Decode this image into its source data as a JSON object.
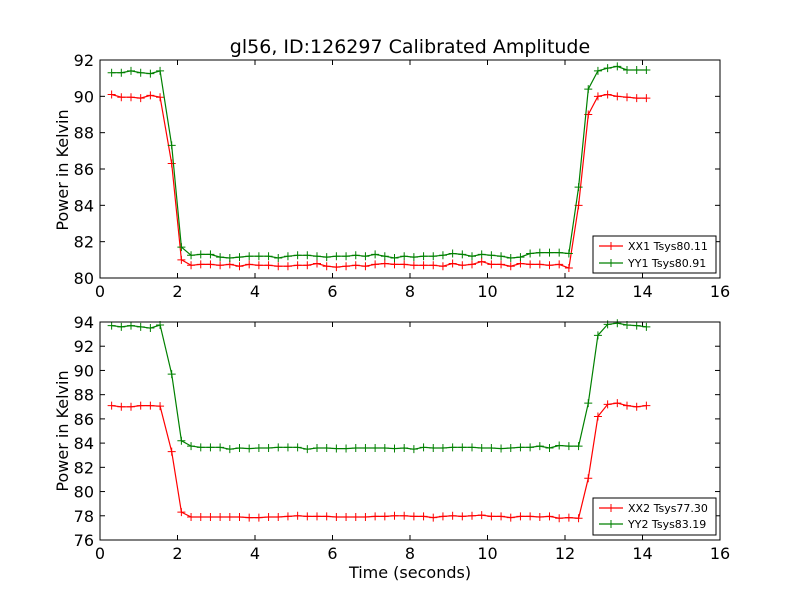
{
  "chart_data": [
    {
      "type": "line",
      "title": "gl56, ID:126297 Calibrated Amplitude",
      "xlabel": "",
      "ylabel": "Power in Kelvin",
      "xlim": [
        0,
        16
      ],
      "ylim": [
        80,
        92
      ],
      "xticks": [
        "0",
        "2",
        "4",
        "6",
        "8",
        "10",
        "12",
        "14",
        "16"
      ],
      "yticks": [
        "80",
        "82",
        "84",
        "86",
        "88",
        "90",
        "92"
      ],
      "legend_position": "lower-right",
      "x": [
        0.3,
        0.55,
        0.8,
        1.05,
        1.3,
        1.55,
        1.85,
        2.1,
        2.35,
        2.6,
        2.85,
        3.1,
        3.35,
        3.6,
        3.85,
        4.1,
        4.35,
        4.6,
        4.85,
        5.1,
        5.35,
        5.6,
        5.85,
        6.1,
        6.35,
        6.6,
        6.85,
        7.1,
        7.35,
        7.6,
        7.85,
        8.1,
        8.35,
        8.6,
        8.85,
        9.1,
        9.35,
        9.6,
        9.85,
        10.1,
        10.35,
        10.6,
        10.85,
        11.1,
        11.35,
        11.6,
        11.85,
        12.1,
        12.35,
        12.6,
        12.85,
        13.1,
        13.35,
        13.6,
        13.85,
        14.1
      ],
      "series": [
        {
          "name": "XX1 Tsys80.11",
          "color": "#ff0000",
          "values": [
            90.1,
            89.95,
            89.95,
            89.9,
            90.05,
            89.95,
            86.3,
            81.0,
            80.7,
            80.75,
            80.75,
            80.7,
            80.75,
            80.65,
            80.75,
            80.7,
            80.7,
            80.65,
            80.65,
            80.7,
            80.7,
            80.8,
            80.65,
            80.6,
            80.65,
            80.7,
            80.65,
            80.75,
            80.8,
            80.75,
            80.75,
            80.7,
            80.7,
            80.7,
            80.65,
            80.8,
            80.7,
            80.75,
            80.9,
            80.75,
            80.75,
            80.65,
            80.8,
            80.75,
            80.75,
            80.7,
            80.75,
            80.55,
            84.0,
            89.0,
            90.0,
            90.1,
            90.0,
            89.95,
            89.9,
            89.9
          ]
        },
        {
          "name": "YY1 Tsys80.91",
          "color": "#008000",
          "values": [
            91.3,
            91.3,
            91.4,
            91.3,
            91.25,
            91.4,
            87.3,
            81.7,
            81.25,
            81.3,
            81.3,
            81.15,
            81.1,
            81.15,
            81.2,
            81.2,
            81.2,
            81.1,
            81.2,
            81.25,
            81.25,
            81.2,
            81.15,
            81.2,
            81.2,
            81.25,
            81.2,
            81.3,
            81.2,
            81.1,
            81.2,
            81.15,
            81.2,
            81.2,
            81.25,
            81.35,
            81.3,
            81.2,
            81.3,
            81.25,
            81.2,
            81.1,
            81.15,
            81.35,
            81.4,
            81.4,
            81.4,
            81.35,
            85.0,
            90.4,
            91.4,
            91.55,
            91.65,
            91.45,
            91.45,
            91.45
          ]
        }
      ]
    },
    {
      "type": "line",
      "title": "",
      "xlabel": "Time (seconds)",
      "ylabel": "Power in Kelvin",
      "xlim": [
        0,
        16
      ],
      "ylim": [
        76,
        94
      ],
      "xticks": [
        "0",
        "2",
        "4",
        "6",
        "8",
        "10",
        "12",
        "14",
        "16"
      ],
      "yticks": [
        "76",
        "78",
        "80",
        "82",
        "84",
        "86",
        "88",
        "90",
        "92",
        "94"
      ],
      "legend_position": "lower-right",
      "x": [
        0.3,
        0.55,
        0.8,
        1.05,
        1.3,
        1.55,
        1.85,
        2.1,
        2.35,
        2.6,
        2.85,
        3.1,
        3.35,
        3.6,
        3.85,
        4.1,
        4.35,
        4.6,
        4.85,
        5.1,
        5.35,
        5.6,
        5.85,
        6.1,
        6.35,
        6.6,
        6.85,
        7.1,
        7.35,
        7.6,
        7.85,
        8.1,
        8.35,
        8.6,
        8.85,
        9.1,
        9.35,
        9.6,
        9.85,
        10.1,
        10.35,
        10.6,
        10.85,
        11.1,
        11.35,
        11.6,
        11.85,
        12.1,
        12.35,
        12.6,
        12.85,
        13.1,
        13.35,
        13.6,
        13.85,
        14.1
      ],
      "series": [
        {
          "name": "XX2 Tsys77.30",
          "color": "#ff0000",
          "values": [
            87.1,
            87.0,
            87.0,
            87.1,
            87.1,
            87.05,
            83.3,
            78.3,
            77.9,
            77.9,
            77.9,
            77.9,
            77.9,
            77.9,
            77.85,
            77.85,
            77.9,
            77.9,
            77.95,
            78.0,
            77.95,
            77.95,
            77.95,
            77.9,
            77.9,
            77.9,
            77.9,
            77.95,
            77.95,
            78.0,
            78.0,
            77.95,
            77.95,
            77.85,
            77.95,
            78.0,
            77.95,
            78.0,
            78.05,
            77.95,
            77.95,
            77.85,
            77.95,
            77.95,
            77.9,
            77.95,
            77.8,
            77.85,
            77.8,
            81.1,
            86.2,
            87.2,
            87.3,
            87.1,
            87.0,
            87.1
          ]
        },
        {
          "name": "YY2 Tsys83.19",
          "color": "#008000",
          "values": [
            93.7,
            93.6,
            93.7,
            93.6,
            93.5,
            93.75,
            89.7,
            84.2,
            83.75,
            83.65,
            83.65,
            83.65,
            83.5,
            83.6,
            83.55,
            83.6,
            83.6,
            83.65,
            83.65,
            83.65,
            83.5,
            83.6,
            83.6,
            83.55,
            83.55,
            83.6,
            83.6,
            83.6,
            83.6,
            83.55,
            83.6,
            83.5,
            83.65,
            83.6,
            83.6,
            83.65,
            83.65,
            83.65,
            83.6,
            83.6,
            83.55,
            83.6,
            83.65,
            83.65,
            83.75,
            83.6,
            83.8,
            83.75,
            83.75,
            87.3,
            92.9,
            93.8,
            93.9,
            93.75,
            93.7,
            93.6
          ]
        }
      ]
    }
  ]
}
